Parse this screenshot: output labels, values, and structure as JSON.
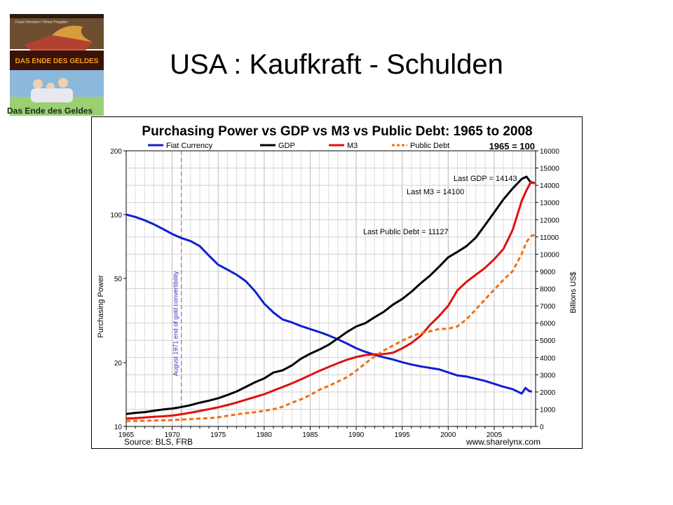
{
  "slide": {
    "title": "USA : Kaufkraft - Schulden"
  },
  "book": {
    "authors": "Franz Hörmann / Otmar Pregetter",
    "title": "DAS ENDE DES GELDES",
    "caption": "Das Ende des Geldes",
    "colors": {
      "top": "#7a5a3a",
      "band": "#3a1208",
      "title": "#f2a020",
      "bottom": "#7fb0d8"
    }
  },
  "chart_data": {
    "type": "line",
    "title": "Purchasing Power vs GDP vs M3 vs Public Debt: 1965 to 2008",
    "subtitle": "1965 = 100",
    "ylabel_left": "Purchasing Power",
    "ylabel_right": "Billions US$",
    "source": "Source: BLS, FRB",
    "website": "www.sharelynx.com",
    "x_range": [
      1965,
      2009.5
    ],
    "x_ticks": [
      1965,
      1970,
      1975,
      1980,
      1985,
      1990,
      1995,
      2000,
      2005
    ],
    "left_axis": {
      "scale": "log",
      "range": [
        10,
        200
      ],
      "ticks": [
        10,
        20,
        50,
        100,
        200
      ]
    },
    "right_axis": {
      "scale": "linear",
      "range": [
        0,
        16000
      ],
      "ticks": [
        0,
        1000,
        2000,
        3000,
        4000,
        5000,
        6000,
        7000,
        8000,
        9000,
        10000,
        11000,
        12000,
        13000,
        14000,
        15000,
        16000
      ]
    },
    "grid": true,
    "legend_position": "top",
    "annotations": [
      {
        "text": "Last GDP = 14143"
      },
      {
        "text": "Last M3 = 14100"
      },
      {
        "text": "Last Public Debt = 11127"
      }
    ],
    "event_line": {
      "x": 1971,
      "label": "August 1971 end of gold convertibility",
      "color": "#b040c0"
    },
    "series": [
      {
        "name": "Fiat Currency",
        "axis": "left",
        "color": "#1020d0",
        "dashed": false,
        "x": [
          1965,
          1966,
          1967,
          1968,
          1969,
          1970,
          1971,
          1972,
          1973,
          1974,
          1975,
          1976,
          1977,
          1978,
          1979,
          1980,
          1981,
          1982,
          1983,
          1984,
          1985,
          1986,
          1987,
          1988,
          1989,
          1990,
          1991,
          1992,
          1993,
          1994,
          1995,
          1996,
          1997,
          1998,
          1999,
          2000,
          2001,
          2002,
          2003,
          2004,
          2005,
          2006,
          2007,
          2008,
          2008.4,
          2008.8,
          2009.1
        ],
        "y": [
          100,
          97.5,
          94,
          90,
          85.5,
          81,
          77.5,
          75,
          71,
          64,
          58,
          55,
          52,
          48.5,
          43.5,
          38,
          34.5,
          32,
          31,
          29.8,
          28.8,
          27.9,
          26.9,
          25.8,
          24.6,
          23.4,
          22.5,
          21.8,
          21.2,
          20.7,
          20.1,
          19.6,
          19.2,
          18.9,
          18.6,
          18.0,
          17.4,
          17.2,
          16.8,
          16.4,
          15.9,
          15.4,
          15.0,
          14.3,
          15.2,
          14.7,
          14.6
        ]
      },
      {
        "name": "GDP",
        "axis": "right",
        "color": "#000000",
        "dashed": false,
        "x": [
          1965,
          1966,
          1967,
          1968,
          1969,
          1970,
          1971,
          1972,
          1973,
          1974,
          1975,
          1976,
          1977,
          1978,
          1979,
          1980,
          1981,
          1982,
          1983,
          1984,
          1985,
          1986,
          1987,
          1988,
          1989,
          1990,
          1991,
          1992,
          1993,
          1994,
          1995,
          1996,
          1997,
          1998,
          1999,
          2000,
          2001,
          2002,
          2003,
          2004,
          2005,
          2006,
          2007,
          2008,
          2008.5,
          2009,
          2009.4
        ],
        "y": [
          719,
          788,
          832,
          910,
          985,
          1039,
          1127,
          1238,
          1382,
          1500,
          1638,
          1825,
          2031,
          2295,
          2563,
          2789,
          3128,
          3255,
          3537,
          3933,
          4220,
          4463,
          4740,
          5104,
          5484,
          5803,
          5995,
          6338,
          6657,
          7072,
          7398,
          7817,
          8304,
          8747,
          9268,
          9817,
          10128,
          10470,
          10961,
          11686,
          12422,
          13178,
          13808,
          14369,
          14500,
          14150,
          14143
        ]
      },
      {
        "name": "M3",
        "axis": "right",
        "color": "#e01010",
        "dashed": false,
        "x": [
          1965,
          1966,
          1967,
          1968,
          1969,
          1970,
          1971,
          1972,
          1973,
          1974,
          1975,
          1976,
          1977,
          1978,
          1979,
          1980,
          1981,
          1982,
          1983,
          1984,
          1985,
          1986,
          1987,
          1988,
          1989,
          1990,
          1991,
          1992,
          1993,
          1994,
          1995,
          1996,
          1997,
          1998,
          1999,
          2000,
          2001,
          2002,
          2003,
          2004,
          2005,
          2006,
          2007,
          2008,
          2008.5,
          2009,
          2009.4
        ],
        "y": [
          460,
          480,
          520,
          560,
          590,
          630,
          710,
          800,
          900,
          1000,
          1110,
          1240,
          1390,
          1550,
          1710,
          1870,
          2080,
          2290,
          2500,
          2730,
          2980,
          3230,
          3450,
          3670,
          3870,
          4030,
          4140,
          4180,
          4200,
          4280,
          4530,
          4840,
          5260,
          5880,
          6400,
          7000,
          7900,
          8400,
          8800,
          9200,
          9700,
          10300,
          11400,
          13100,
          13700,
          14200,
          14100
        ]
      },
      {
        "name": "Public Debt",
        "axis": "right",
        "color": "#f07010",
        "dashed": true,
        "x": [
          1965,
          1966,
          1967,
          1968,
          1969,
          1970,
          1971,
          1972,
          1973,
          1974,
          1975,
          1976,
          1977,
          1978,
          1979,
          1980,
          1981,
          1982,
          1983,
          1984,
          1985,
          1986,
          1987,
          1988,
          1989,
          1990,
          1991,
          1992,
          1993,
          1994,
          1995,
          1996,
          1997,
          1998,
          1999,
          2000,
          2001,
          2002,
          2003,
          2004,
          2005,
          2006,
          2007,
          2008,
          2008.5,
          2009,
          2009.4
        ],
        "y": [
          317,
          320,
          326,
          348,
          354,
          371,
          398,
          427,
          458,
          475,
          533,
          620,
          699,
          772,
          827,
          908,
          998,
          1142,
          1377,
          1572,
          1823,
          2125,
          2350,
          2602,
          2857,
          3233,
          3665,
          4064,
          4411,
          4693,
          4974,
          5225,
          5413,
          5526,
          5656,
          5674,
          5807,
          6228,
          6783,
          7379,
          7933,
          8507,
          9008,
          10025,
          10700,
          11050,
          11127
        ]
      }
    ]
  }
}
